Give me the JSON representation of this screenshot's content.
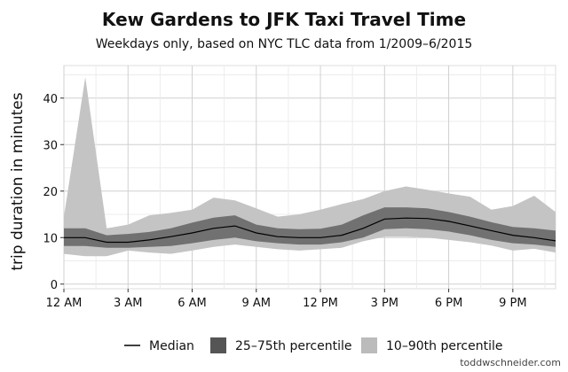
{
  "chart_data": {
    "type": "area",
    "title": "Kew Gardens to JFK Taxi Travel Time",
    "subtitle": "Weekdays only, based on NYC TLC data from 1/2009–6/2015",
    "ylabel": "trip duration in minutes",
    "xlabel": "",
    "x": [
      0,
      1,
      2,
      3,
      4,
      5,
      6,
      7,
      8,
      9,
      10,
      11,
      12,
      13,
      14,
      15,
      16,
      17,
      18,
      19,
      20,
      21,
      22,
      23
    ],
    "x_ticks": [
      {
        "value": 0,
        "label": "12 AM"
      },
      {
        "value": 3,
        "label": "3 AM"
      },
      {
        "value": 6,
        "label": "6 AM"
      },
      {
        "value": 9,
        "label": "9 AM"
      },
      {
        "value": 12,
        "label": "12 PM"
      },
      {
        "value": 15,
        "label": "3 PM"
      },
      {
        "value": 18,
        "label": "6 PM"
      },
      {
        "value": 21,
        "label": "9 PM"
      }
    ],
    "y_ticks": [
      0,
      10,
      20,
      30,
      40
    ],
    "xlim": [
      0,
      23
    ],
    "ylim": [
      -1,
      47
    ],
    "grid": true,
    "legend_position": "bottom",
    "series": [
      {
        "name": "Median",
        "kind": "line",
        "color": "#000000",
        "values": [
          10.0,
          10.0,
          9.0,
          9.0,
          9.5,
          10.2,
          11.0,
          12.0,
          12.5,
          11.0,
          10.2,
          10.0,
          10.0,
          10.5,
          12.0,
          14.0,
          14.2,
          14.1,
          13.5,
          12.5,
          11.5,
          10.5,
          10.0,
          9.3
        ]
      },
      {
        "name": "25–75th percentile",
        "kind": "band",
        "color": "#555555",
        "upper": [
          12.0,
          12.0,
          10.5,
          10.8,
          11.2,
          12.0,
          13.2,
          14.3,
          14.8,
          12.8,
          12.0,
          11.8,
          11.9,
          12.8,
          14.8,
          16.5,
          16.5,
          16.3,
          15.5,
          14.5,
          13.3,
          12.3,
          12.0,
          11.5
        ],
        "lower": [
          8.2,
          8.2,
          7.8,
          7.8,
          8.0,
          8.2,
          8.8,
          9.5,
          10.0,
          9.2,
          8.8,
          8.5,
          8.5,
          9.0,
          10.0,
          11.8,
          12.0,
          11.8,
          11.3,
          10.5,
          9.5,
          8.8,
          8.5,
          8.0
        ]
      },
      {
        "name": "10–90th percentile",
        "kind": "band",
        "color": "#c4c4c4",
        "upper": [
          14.5,
          44.5,
          12.0,
          12.8,
          14.8,
          15.3,
          16.0,
          18.6,
          18.0,
          16.3,
          14.5,
          15.0,
          16.0,
          17.2,
          18.3,
          20.0,
          21.0,
          20.3,
          19.5,
          18.8,
          16.0,
          16.8,
          19.0,
          15.5
        ],
        "lower": [
          6.5,
          6.0,
          6.0,
          7.2,
          6.8,
          6.5,
          7.2,
          8.0,
          8.5,
          8.0,
          7.5,
          7.2,
          7.5,
          7.8,
          9.2,
          10.2,
          10.2,
          10.0,
          9.5,
          9.0,
          8.3,
          7.2,
          7.6,
          6.8
        ]
      }
    ]
  },
  "legend": {
    "items": [
      {
        "label": "Median",
        "swatch": "line"
      },
      {
        "label": "25–75th percentile",
        "swatch": "dark"
      },
      {
        "label": "10–90th percentile",
        "swatch": "light"
      }
    ]
  },
  "source": "toddwschneider.com"
}
